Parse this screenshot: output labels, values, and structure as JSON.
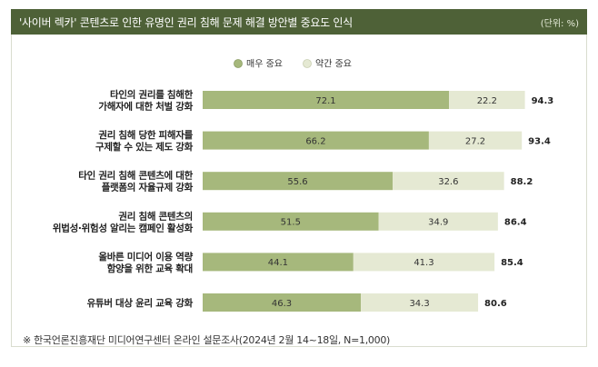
{
  "header": {
    "title": "'사이버 렉카' 콘텐츠로 인한 유명인 권리 침해 문제 해결 방안별 중요도 인식",
    "unit": "(단위: %)"
  },
  "source": "※ 한국언론진흥재단 미디어연구센터 온라인 설문조사(2024년 2월 14~18일, N=1,000)",
  "colors": {
    "very": "#a6b87c",
    "somewhat": "#e5e9d3",
    "header_bg": "#4e6137"
  },
  "chart_data": {
    "type": "bar",
    "orientation": "horizontal",
    "stacked": true,
    "title": "'사이버 렉카' 콘텐츠로 인한 유명인 권리 침해 문제 해결 방안별 중요도 인식",
    "unit": "%",
    "legend_position": "top-center",
    "xlim": [
      0,
      100
    ],
    "categories": [
      [
        "타인의 권리를 침해한",
        "가해자에 대한 처벌 강화"
      ],
      [
        "권리 침해 당한 피해자를",
        "구제할 수 있는 제도 강화"
      ],
      [
        "타인 권리 침해 콘텐츠에 대한",
        "플랫폼의 자율규제 강화"
      ],
      [
        "권리 침해 콘텐츠의",
        "위법성·위험성 알리는 캠페인 활성화"
      ],
      [
        "올바른 미디어 이용 역량",
        "함양을 위한 교육 확대"
      ],
      [
        "유튜버 대상 윤리 교육 강화"
      ]
    ],
    "series": [
      {
        "name": "매우 중요",
        "values": [
          72.1,
          66.2,
          55.6,
          51.5,
          44.1,
          46.3
        ]
      },
      {
        "name": "약간 중요",
        "values": [
          22.2,
          27.2,
          32.6,
          34.9,
          41.3,
          34.3
        ]
      }
    ],
    "totals": [
      94.3,
      93.4,
      88.2,
      86.4,
      85.4,
      80.6
    ]
  }
}
